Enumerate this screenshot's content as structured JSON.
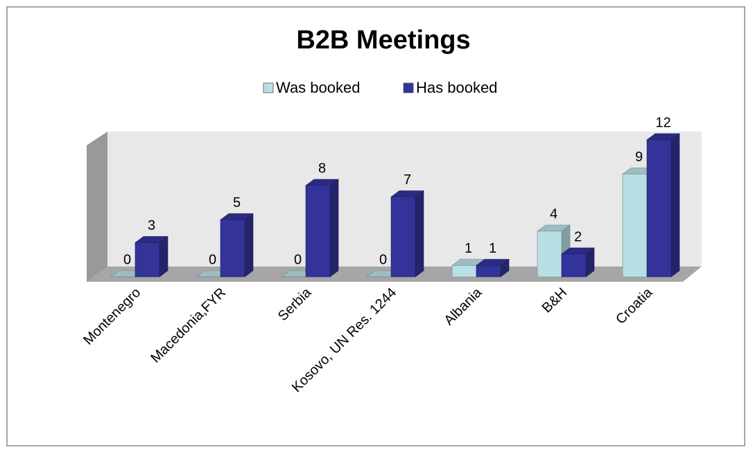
{
  "chart_data": {
    "type": "bar3d",
    "title": "B2B Meetings",
    "categories": [
      "Montenegro",
      "Macedonia,FYR",
      "Serbia",
      "Kosovo, UN Res. 1244",
      "Albania",
      "B&H",
      "Croatia"
    ],
    "series": [
      {
        "name": "Was booked",
        "color": "#b8e0e4",
        "values": [
          0,
          0,
          0,
          0,
          1,
          4,
          9
        ]
      },
      {
        "name": "Has booked",
        "color": "#333399",
        "values": [
          3,
          5,
          8,
          7,
          1,
          2,
          12
        ]
      }
    ],
    "ylim": [
      0,
      12
    ],
    "legend": "top"
  }
}
